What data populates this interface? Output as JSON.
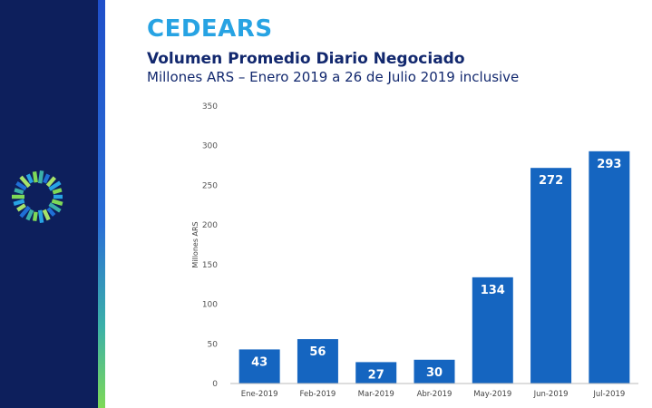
{
  "header": {
    "brand": "CEDEARS",
    "title": "Volumen Promedio Diario Negociado",
    "subtitle": "Millones ARS – Enero 2019 a 26 de Julio 2019 inclusive"
  },
  "colors": {
    "sidebar": "#0d1f5c",
    "brand": "#27a3e3",
    "title": "#12286e",
    "bar": "#1565c0"
  },
  "logo": {
    "icon": "circular-dots-logo-icon"
  },
  "chart_data": {
    "type": "bar",
    "categories": [
      "Ene-2019",
      "Feb-2019",
      "Mar-2019",
      "Abr-2019",
      "May-2019",
      "Jun-2019",
      "Jul-2019"
    ],
    "values": [
      43,
      56,
      27,
      30,
      134,
      272,
      293
    ],
    "ylabel": "Millones ARS",
    "ylim": [
      0,
      350
    ],
    "yticks": [
      0,
      50,
      100,
      150,
      200,
      250,
      300,
      350
    ],
    "grid": false,
    "legend": "none",
    "data_labels": true
  }
}
